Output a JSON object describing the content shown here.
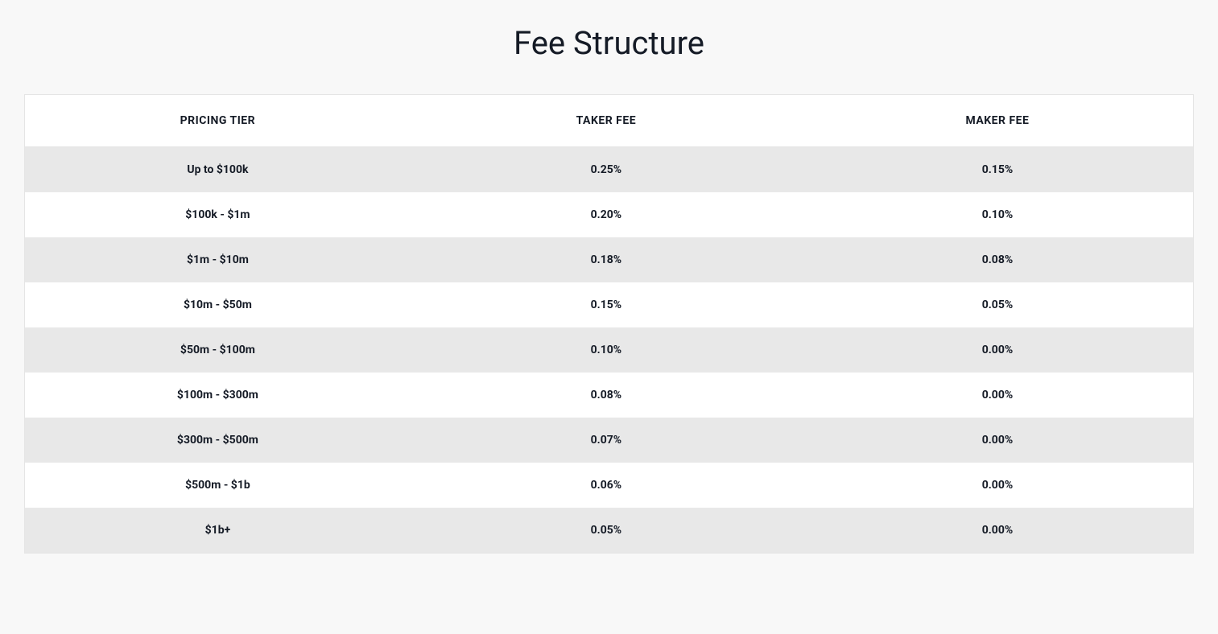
{
  "title": "Fee Structure",
  "table": {
    "type": "table",
    "background_color": "#f8f8f8",
    "border_color": "#e5e5e5",
    "header_bg": "#ffffff",
    "row_odd_bg": "#e8e8e8",
    "row_even_bg": "#ffffff",
    "text_color": "#151b26",
    "header_fontsize": 14,
    "cell_fontsize": 14,
    "title_fontsize": 40,
    "font_weight_header": 700,
    "font_weight_cell": 700,
    "columns": [
      "PRICING TIER",
      "TAKER FEE",
      "MAKER FEE"
    ],
    "rows": [
      [
        "Up to $100k",
        "0.25%",
        "0.15%"
      ],
      [
        "$100k - $1m",
        "0.20%",
        "0.10%"
      ],
      [
        "$1m - $10m",
        "0.18%",
        "0.08%"
      ],
      [
        "$10m - $50m",
        "0.15%",
        "0.05%"
      ],
      [
        "$50m - $100m",
        "0.10%",
        "0.00%"
      ],
      [
        "$100m - $300m",
        "0.08%",
        "0.00%"
      ],
      [
        "$300m - $500m",
        "0.07%",
        "0.00%"
      ],
      [
        "$500m - $1b",
        "0.06%",
        "0.00%"
      ],
      [
        "$1b+",
        "0.05%",
        "0.00%"
      ]
    ]
  }
}
